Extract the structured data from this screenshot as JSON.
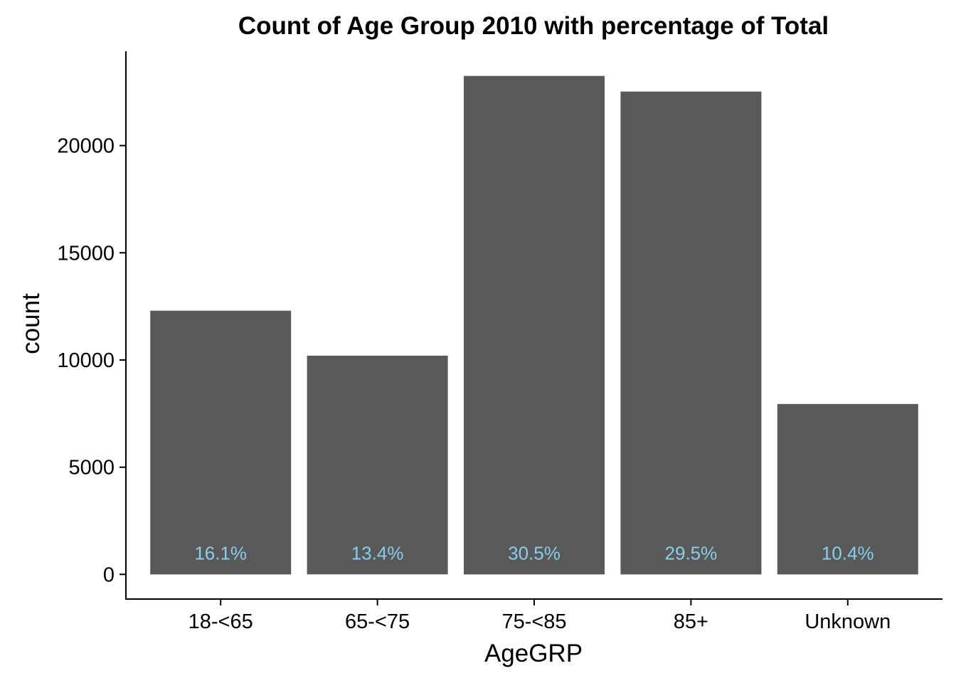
{
  "chart_data": {
    "type": "bar",
    "title": "Count of Age Group 2010 with percentage of Total",
    "xlabel": "AgeGRP",
    "ylabel": "count",
    "categories": [
      "18-<65",
      "65-<75",
      "75-<85",
      "85+",
      "Unknown"
    ],
    "values": [
      12300,
      10200,
      23250,
      22520,
      7950
    ],
    "data_labels": [
      "16.1%",
      "13.4%",
      "30.5%",
      "29.5%",
      "10.4%"
    ],
    "yticks": [
      0,
      5000,
      10000,
      15000,
      20000
    ],
    "ytick_labels": [
      "0",
      "5000",
      "10000",
      "15000",
      "20000"
    ],
    "ylim": [
      -1150,
      24400
    ],
    "grid": false,
    "legend": "none",
    "colors": {
      "bar": "#595959",
      "label": "#87ceeb",
      "axis": "#000000"
    }
  }
}
